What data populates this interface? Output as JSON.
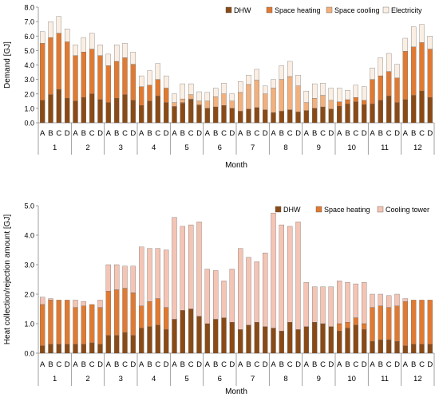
{
  "figure": {
    "colors": {
      "dhw": "#8a4a16",
      "space_heating": "#e07a32",
      "space_cooling": "#f2b07c",
      "electricity": "#fbeee2",
      "cooling_tower": "#f4c4b4",
      "bar_edge": "#555555"
    }
  },
  "chart_data": [
    {
      "type": "bar",
      "stacked": true,
      "ylabel": "Demand [GJ]",
      "xlabel": "Month",
      "ylim": [
        0,
        8
      ],
      "yticks": [
        "0.0",
        "1.0",
        "2.0",
        "3.0",
        "4.0",
        "5.0",
        "6.0",
        "7.0",
        "8.0"
      ],
      "grid": false,
      "legend": "top-right",
      "groups": [
        "1",
        "2",
        "3",
        "4",
        "5",
        "6",
        "7",
        "8",
        "9",
        "10",
        "11",
        "12"
      ],
      "subcategories": [
        "A",
        "B",
        "C",
        "D"
      ],
      "series": [
        {
          "name": "DHW",
          "color": "#8a4a16",
          "values": [
            1.55,
            1.95,
            2.3,
            1.7,
            1.5,
            1.75,
            2.0,
            1.6,
            1.4,
            1.7,
            1.95,
            1.55,
            1.2,
            1.5,
            1.85,
            1.4,
            1.1,
            1.35,
            1.6,
            1.2,
            1.0,
            1.1,
            1.2,
            1.0,
            0.8,
            0.95,
            1.05,
            0.9,
            0.7,
            0.8,
            0.9,
            0.75,
            0.85,
            1.0,
            1.1,
            0.95,
            1.15,
            1.3,
            1.45,
            1.25,
            1.3,
            1.55,
            1.85,
            1.4,
            1.6,
            1.9,
            2.2,
            1.75
          ]
        },
        {
          "name": "Space heating",
          "color": "#e07a32",
          "values": [
            3.95,
            3.95,
            3.9,
            3.9,
            3.15,
            3.15,
            3.1,
            3.05,
            2.55,
            2.55,
            2.55,
            2.5,
            1.3,
            1.1,
            1.15,
            1.0,
            0.05,
            0.05,
            0.05,
            0.05,
            0.0,
            0.0,
            0.0,
            0.0,
            0.0,
            0.0,
            0.0,
            0.0,
            0.0,
            0.0,
            0.0,
            0.0,
            0.0,
            0.0,
            0.0,
            0.0,
            0.3,
            0.3,
            0.3,
            0.3,
            1.7,
            1.7,
            1.7,
            1.7,
            3.35,
            3.35,
            3.35,
            3.35
          ]
        },
        {
          "name": "Space cooling",
          "color": "#f2b07c",
          "values": [
            0,
            0,
            0,
            0,
            0,
            0,
            0,
            0,
            0,
            0,
            0,
            0,
            0,
            0,
            0,
            0,
            0.25,
            0.25,
            0.3,
            0.25,
            0.5,
            0.7,
            0.8,
            0.5,
            1.3,
            1.7,
            1.9,
            1.1,
            1.7,
            2.2,
            2.3,
            1.8,
            0.55,
            0.7,
            0.8,
            0.6,
            0,
            0,
            0,
            0,
            0,
            0,
            0,
            0,
            0,
            0,
            0,
            0
          ]
        },
        {
          "name": "Electricity",
          "color": "#fbeee2",
          "values": [
            0.8,
            1.1,
            1.15,
            0.9,
            0.75,
            1.0,
            1.1,
            0.75,
            0.8,
            1.15,
            1.0,
            0.85,
            0.75,
            1.0,
            1.1,
            0.85,
            0.6,
            1.05,
            0.75,
            0.65,
            0.6,
            0.6,
            0.75,
            0.5,
            0.75,
            0.65,
            0.75,
            0.55,
            0.6,
            0.95,
            1.05,
            0.75,
            0.8,
            1.0,
            0.85,
            0.85,
            0.95,
            0.65,
            0.85,
            0.95,
            0.8,
            1.25,
            1.25,
            0.95,
            0.9,
            1.4,
            1.25,
            0.9
          ]
        }
      ]
    },
    {
      "type": "bar",
      "stacked": true,
      "ylabel": "Heat collection/rejection amount [GJ]",
      "xlabel": "Month",
      "ylim": [
        0,
        5
      ],
      "yticks": [
        "0.0",
        "1.0",
        "2.0",
        "3.0",
        "4.0",
        "5.0"
      ],
      "grid": false,
      "legend": "top-right",
      "groups": [
        "1",
        "2",
        "3",
        "4",
        "5",
        "6",
        "7",
        "8",
        "9",
        "10",
        "11",
        "12"
      ],
      "subcategories": [
        "A",
        "B",
        "C",
        "D"
      ],
      "series": [
        {
          "name": "DHW",
          "color": "#8a4a16",
          "values": [
            0.25,
            0.3,
            0.3,
            0.3,
            0.3,
            0.3,
            0.35,
            0.3,
            0.6,
            0.6,
            0.7,
            0.6,
            0.85,
            0.9,
            0.95,
            0.8,
            1.15,
            1.45,
            1.5,
            1.25,
            1.0,
            1.15,
            1.2,
            1.05,
            0.8,
            0.95,
            1.05,
            0.9,
            0.85,
            0.75,
            1.05,
            0.8,
            0.9,
            1.05,
            1.0,
            0.9,
            0.75,
            0.85,
            0.95,
            0.8,
            0.4,
            0.45,
            0.45,
            0.4,
            0.25,
            0.3,
            0.3,
            0.3
          ]
        },
        {
          "name": "Space heating",
          "color": "#e07a32",
          "values": [
            1.4,
            1.5,
            1.5,
            1.5,
            1.25,
            1.3,
            1.3,
            1.25,
            1.5,
            1.55,
            1.5,
            1.45,
            0.75,
            0.85,
            0.9,
            0.75,
            0.0,
            0.0,
            0.0,
            0.0,
            0.0,
            0.0,
            0.0,
            0.0,
            0.0,
            0.0,
            0.0,
            0.0,
            0.0,
            0.0,
            0.0,
            0.0,
            0.0,
            0.0,
            0.0,
            0.0,
            0.25,
            0.2,
            0.25,
            0.2,
            1.15,
            1.15,
            1.1,
            1.2,
            1.5,
            1.5,
            1.5,
            1.5
          ]
        },
        {
          "name": "Cooling tower",
          "color": "#f4c4b4",
          "values": [
            0.25,
            0.05,
            0.0,
            0.0,
            0.25,
            0.15,
            0.0,
            0.25,
            0.9,
            0.85,
            0.75,
            0.9,
            2.0,
            1.8,
            1.7,
            1.95,
            3.45,
            2.85,
            2.85,
            3.2,
            1.85,
            1.65,
            1.25,
            1.8,
            2.75,
            2.3,
            2.05,
            2.5,
            3.9,
            3.6,
            3.25,
            3.65,
            1.5,
            1.2,
            1.25,
            1.35,
            1.45,
            1.35,
            1.15,
            1.4,
            0.45,
            0.4,
            0.4,
            0.4,
            0.1,
            0.0,
            0.0,
            0.0
          ]
        }
      ]
    }
  ]
}
